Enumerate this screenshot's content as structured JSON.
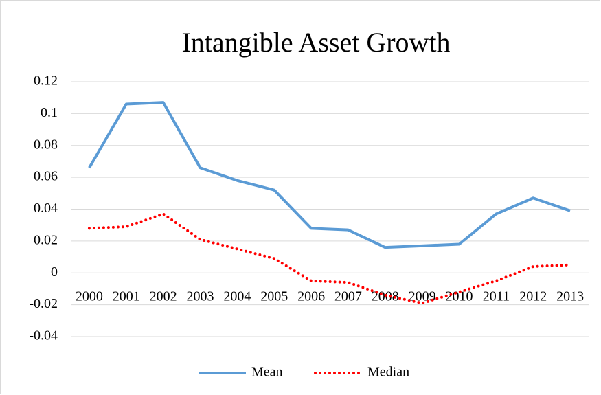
{
  "chart_data": {
    "type": "line",
    "title": "Intangible Asset Growth",
    "categories": [
      "2000",
      "2001",
      "2002",
      "2003",
      "2004",
      "2005",
      "2006",
      "2007",
      "2008",
      "2009",
      "2010",
      "2011",
      "2012",
      "2013"
    ],
    "series": [
      {
        "name": "Mean",
        "color": "#5b9bd5",
        "style": "solid",
        "values": [
          0.066,
          0.106,
          0.107,
          0.066,
          0.058,
          0.052,
          0.028,
          0.027,
          0.016,
          0.017,
          0.018,
          0.037,
          0.047,
          0.039
        ]
      },
      {
        "name": "Median",
        "color": "#ff0000",
        "style": "dotted",
        "values": [
          0.028,
          0.029,
          0.037,
          0.021,
          0.015,
          0.009,
          -0.005,
          -0.006,
          -0.014,
          -0.019,
          -0.012,
          -0.005,
          0.004,
          0.005
        ]
      }
    ],
    "ylim": [
      -0.04,
      0.12
    ],
    "yticks": [
      -0.04,
      -0.02,
      0,
      0.02,
      0.04,
      0.06,
      0.08,
      0.1,
      0.12
    ],
    "grid": true,
    "legend": "bottom"
  }
}
